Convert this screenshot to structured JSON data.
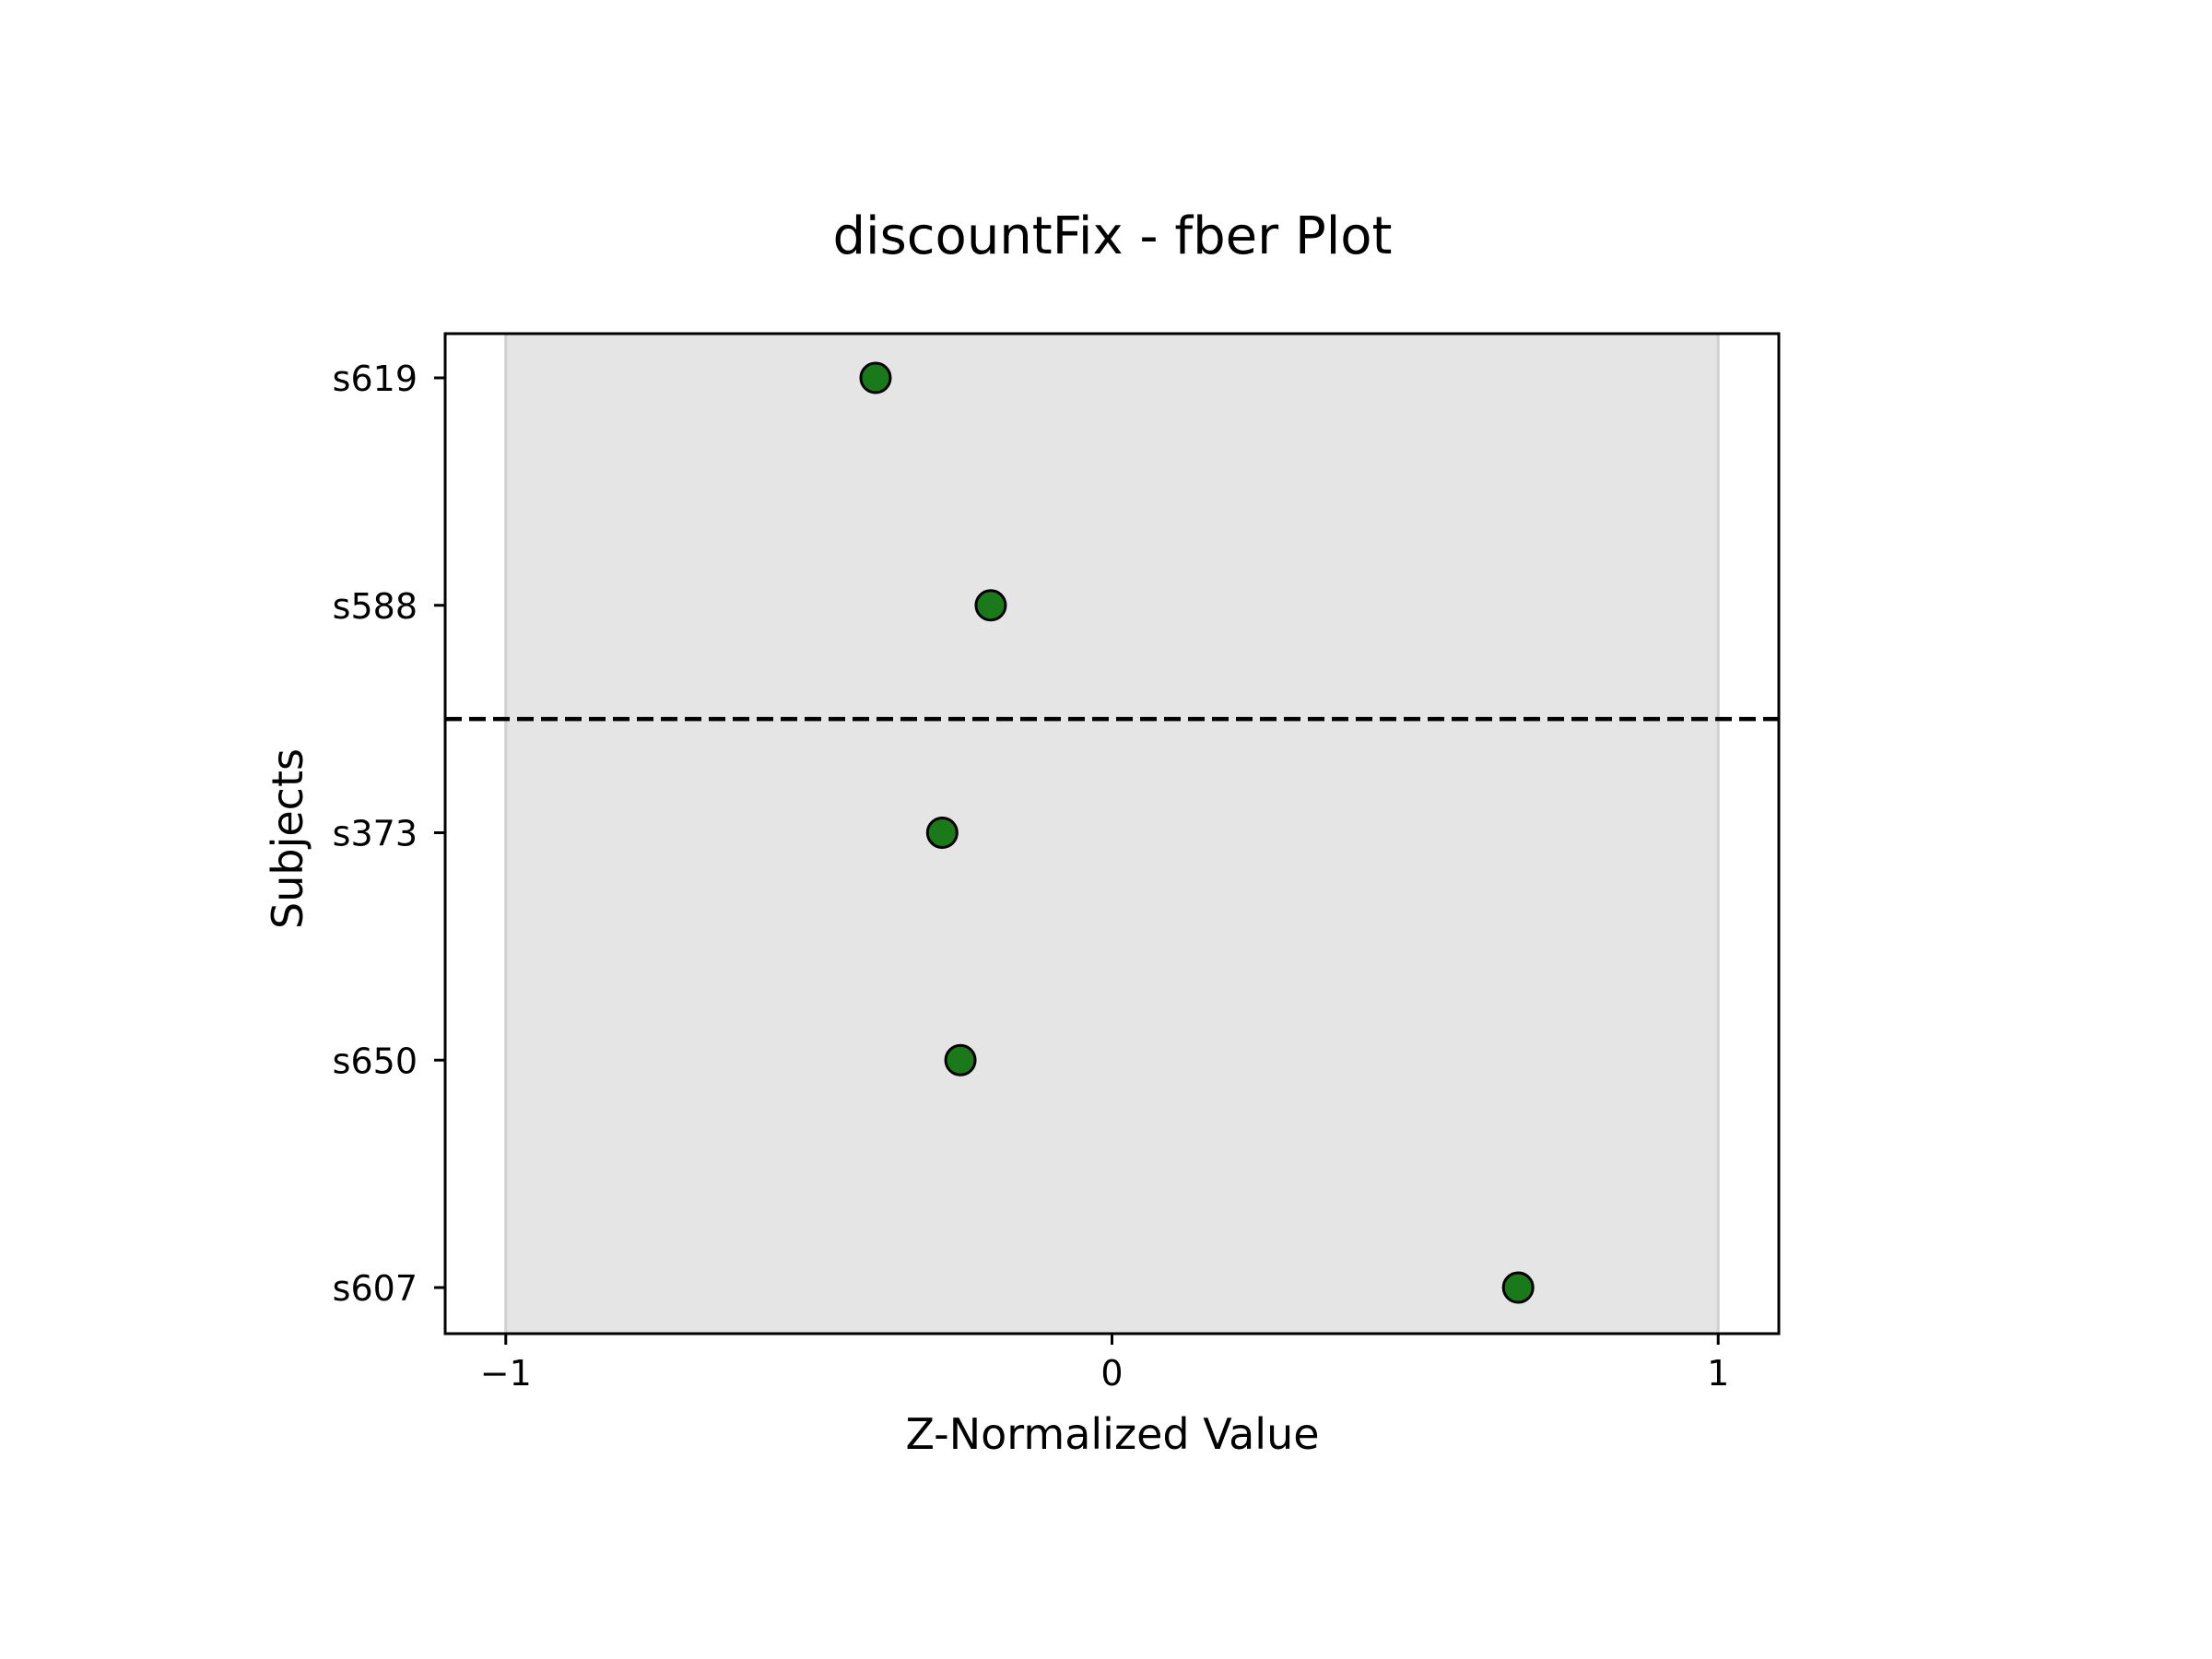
{
  "chart_data": {
    "type": "scatter",
    "title": "discountFix - fber Plot",
    "xlabel": "Z-Normalized Value",
    "ylabel": "Subjects",
    "xlim": [
      -1.1,
      1.1
    ],
    "xticks": [
      -1,
      0,
      1
    ],
    "xtick_labels": [
      "−1",
      "0",
      "1"
    ],
    "categories": [
      "s619",
      "s588",
      "s373",
      "s650",
      "s607"
    ],
    "points": [
      {
        "subject": "s619",
        "x": -0.39
      },
      {
        "subject": "s588",
        "x": -0.2
      },
      {
        "subject": "s373",
        "x": -0.28
      },
      {
        "subject": "s650",
        "x": -0.25
      },
      {
        "subject": "s607",
        "x": 0.67
      }
    ],
    "shaded_band": [
      -1,
      1
    ],
    "dashed_divider_after_index": 1,
    "grid": false,
    "colors": {
      "marker_fill": "#1a7a1a",
      "marker_edge": "#000000",
      "band_fill": "#e5e5e5",
      "band_edge": "#d0d0d0"
    }
  }
}
